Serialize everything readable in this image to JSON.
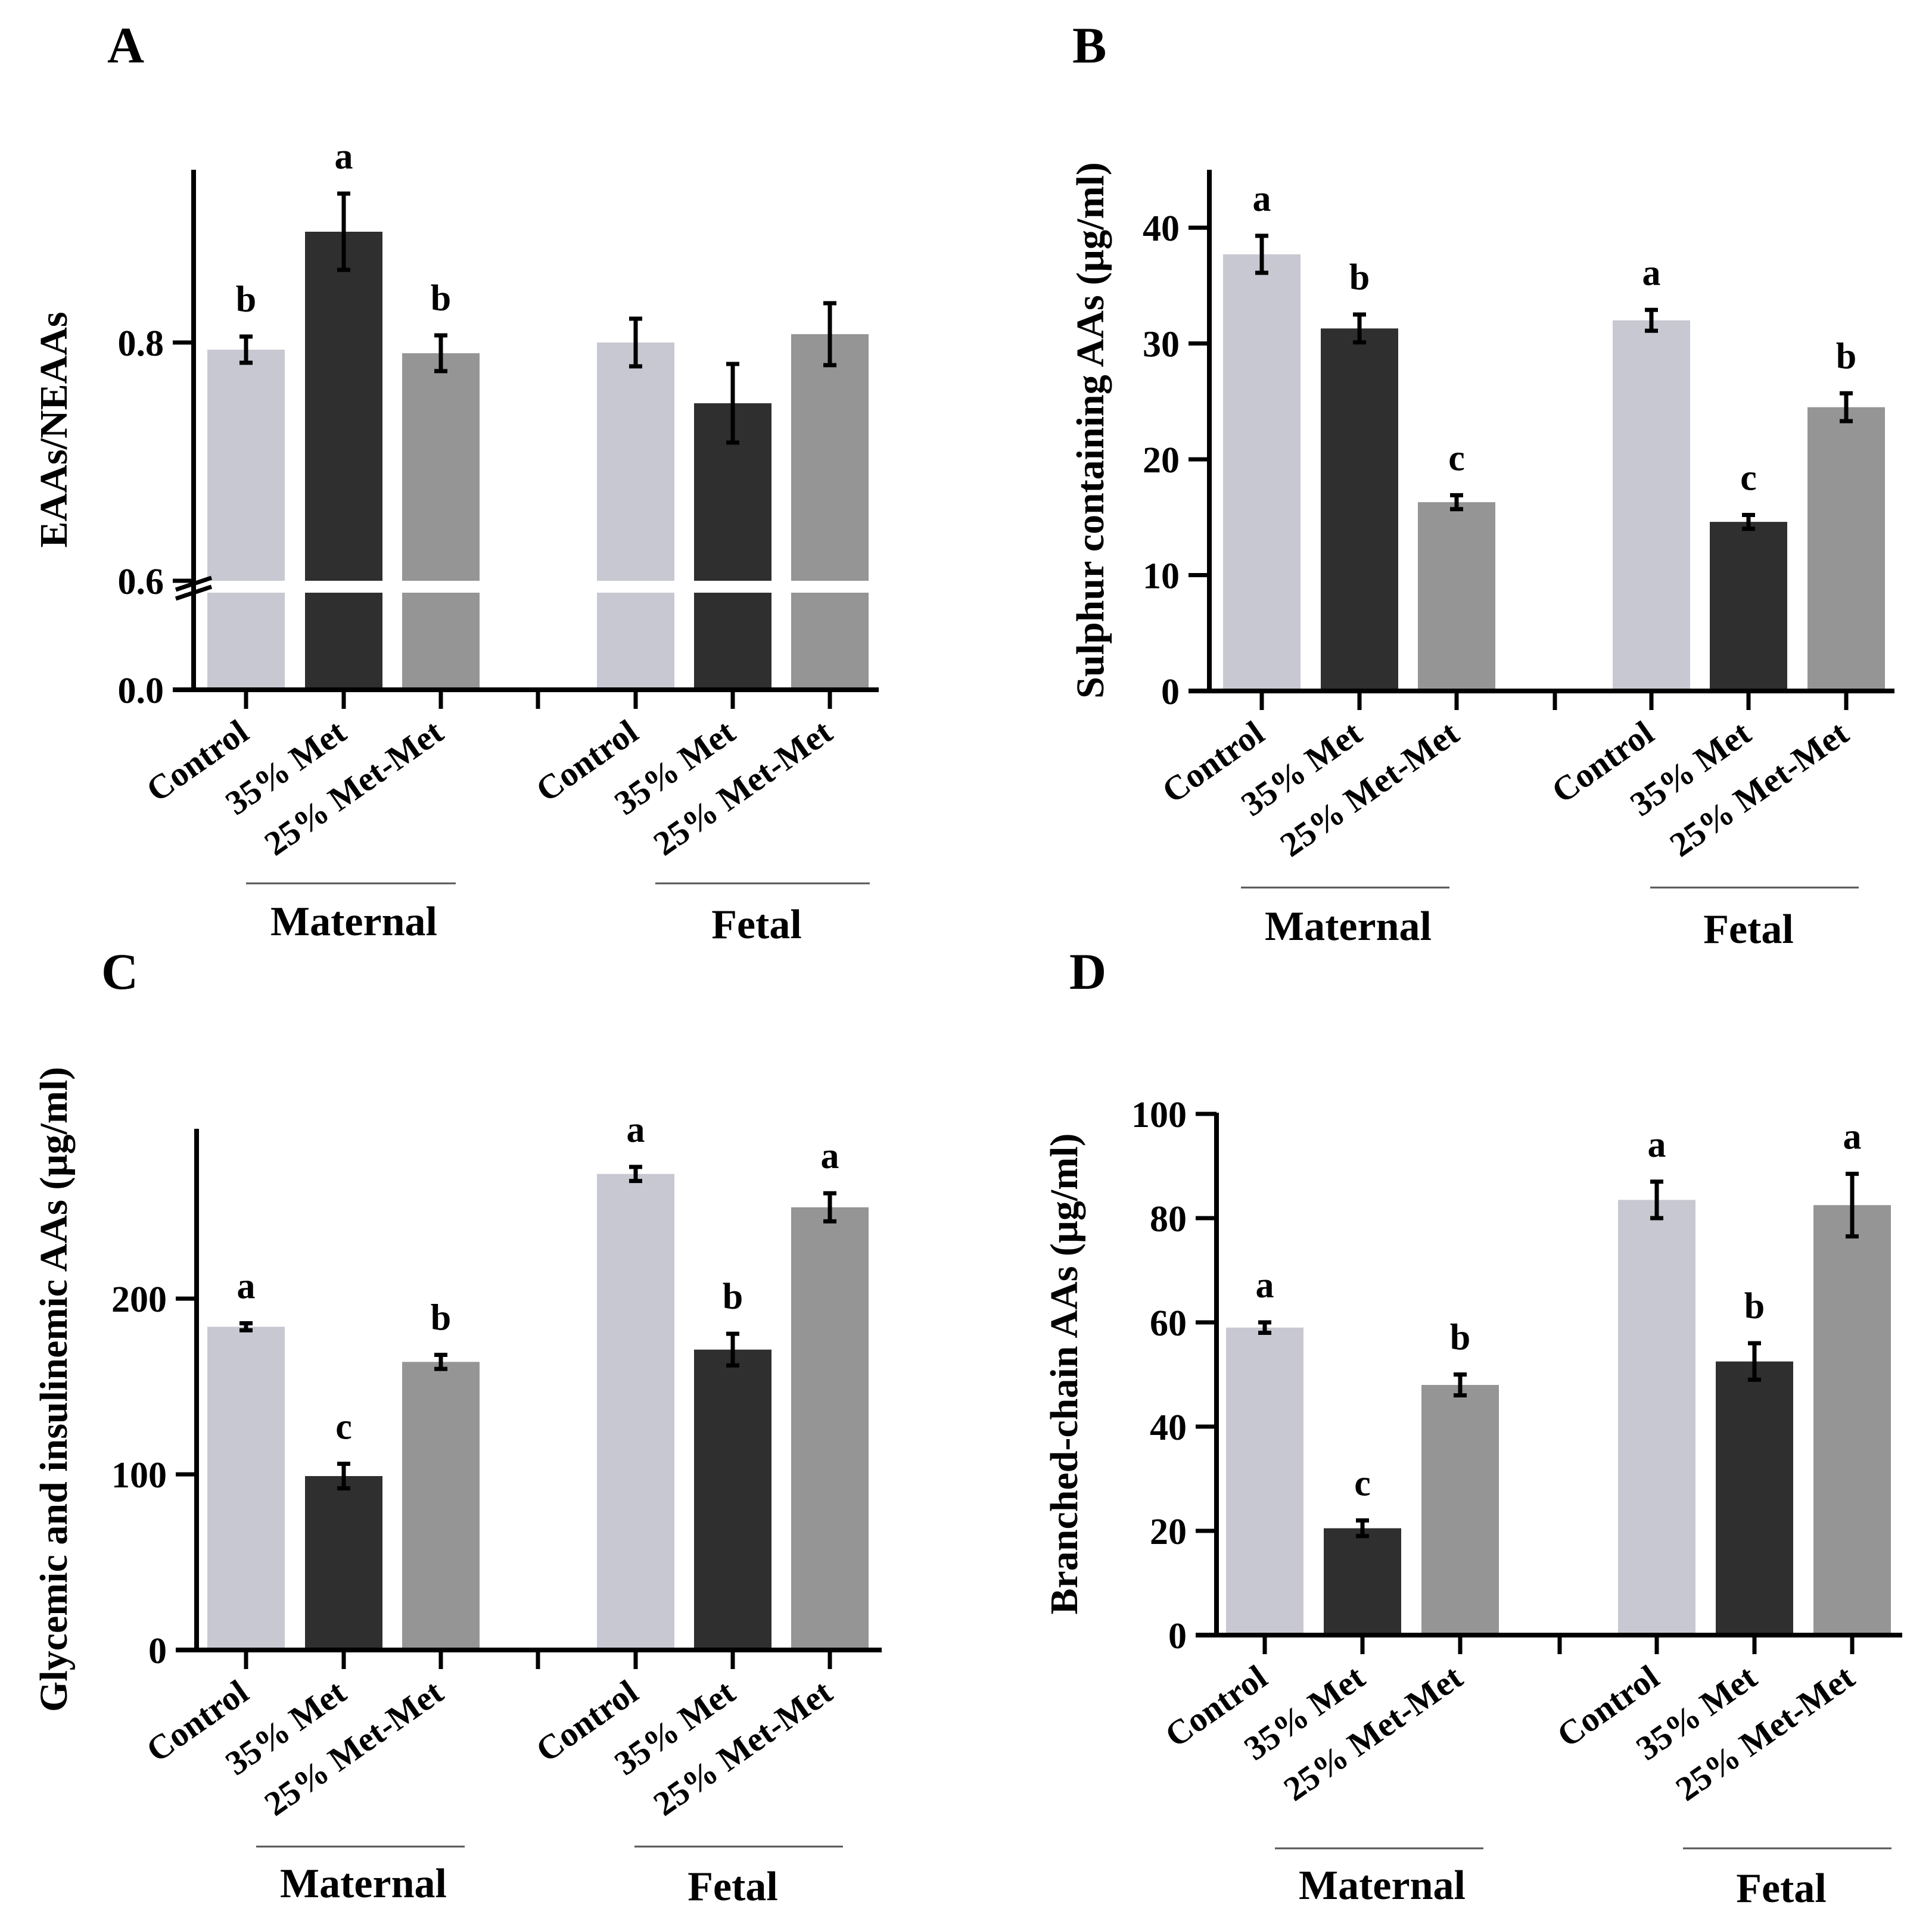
{
  "colors": {
    "Control": "#c8c8d2",
    "35% Met": "#2f2f2f",
    "25% Met-Met": "#959595",
    "axis": "#000000",
    "background": "#ffffff"
  },
  "chart_data": [
    {
      "panel": "A",
      "type": "bar",
      "ylabel": "EAAs/NEAAs",
      "broken_axis": true,
      "ytick_labels": [
        "0.0",
        "0.6",
        "0.8"
      ],
      "groups": [
        "Maternal",
        "Fetal"
      ],
      "categories": [
        "Control",
        "35% Met",
        "25% Met-Met"
      ],
      "series": [
        {
          "group": "Maternal",
          "values": [
            0.794,
            0.893,
            0.791
          ],
          "errors": [
            0.011,
            0.032,
            0.015
          ],
          "letters": [
            "b",
            "a",
            "b"
          ]
        },
        {
          "group": "Fetal",
          "values": [
            0.8,
            0.749,
            0.807
          ],
          "errors": [
            0.02,
            0.033,
            0.026
          ],
          "letters": [
            "",
            "",
            ""
          ]
        }
      ]
    },
    {
      "panel": "B",
      "type": "bar",
      "ylabel": "Sulphur containing AAs (µg/ml)",
      "ylim": [
        0,
        45
      ],
      "yticks": [
        0,
        10,
        20,
        30,
        40
      ],
      "groups": [
        "Maternal",
        "Fetal"
      ],
      "categories": [
        "Control",
        "35% Met",
        "25% Met-Met"
      ],
      "series": [
        {
          "group": "Maternal",
          "values": [
            37.7,
            31.3,
            16.3
          ],
          "errors": [
            1.6,
            1.2,
            0.6
          ],
          "letters": [
            "a",
            "b",
            "c"
          ]
        },
        {
          "group": "Fetal",
          "values": [
            32.0,
            14.6,
            24.5
          ],
          "errors": [
            0.9,
            0.6,
            1.2
          ],
          "letters": [
            "a",
            "c",
            "b"
          ]
        }
      ]
    },
    {
      "panel": "C",
      "type": "bar",
      "ylabel": "Glycemic and insulinemic AAs (µg/ml)",
      "ylim": [
        0,
        295
      ],
      "yticks": [
        0,
        100,
        200
      ],
      "groups": [
        "Maternal",
        "Fetal"
      ],
      "categories": [
        "Control",
        "35% Met",
        "25% Met-Met"
      ],
      "series": [
        {
          "group": "Maternal",
          "values": [
            184,
            99,
            164
          ],
          "errors": [
            2,
            7,
            4
          ],
          "letters": [
            "a",
            "c",
            "b"
          ]
        },
        {
          "group": "Fetal",
          "values": [
            271,
            171,
            252
          ],
          "errors": [
            4,
            9,
            8
          ],
          "letters": [
            "a",
            "b",
            "a"
          ]
        }
      ]
    },
    {
      "panel": "D",
      "type": "bar",
      "ylabel": "Branched-chain AAs (µg/ml)",
      "ylim": [
        0,
        100
      ],
      "yticks": [
        0,
        20,
        40,
        60,
        80,
        100
      ],
      "groups": [
        "Maternal",
        "Fetal"
      ],
      "categories": [
        "Control",
        "35% Met",
        "25% Met-Met"
      ],
      "series": [
        {
          "group": "Maternal",
          "values": [
            59,
            20.5,
            48
          ],
          "errors": [
            1,
            1.5,
            2
          ],
          "letters": [
            "a",
            "c",
            "b"
          ]
        },
        {
          "group": "Fetal",
          "values": [
            83.5,
            52.5,
            82.5
          ],
          "errors": [
            3.5,
            3.5,
            6
          ],
          "letters": [
            "a",
            "b",
            "a"
          ]
        }
      ]
    }
  ]
}
